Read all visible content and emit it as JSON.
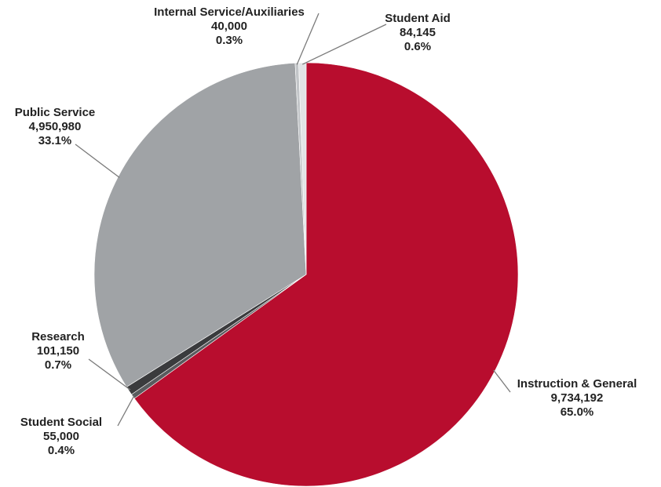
{
  "chart_data": {
    "type": "pie",
    "title": "",
    "slices": [
      {
        "name": "Instruction & General",
        "value": 9734192,
        "value_label": "9,734,192",
        "percent_label": "65.0%",
        "color": "#b80d2e"
      },
      {
        "name": "Student Social",
        "value": 55000,
        "value_label": "55,000",
        "percent_label": "0.4%",
        "color": "#595b5e"
      },
      {
        "name": "Research",
        "value": 101150,
        "value_label": "101,150",
        "percent_label": "0.7%",
        "color": "#3a3b3d"
      },
      {
        "name": "Public Service",
        "value": 4950980,
        "value_label": "4,950,980",
        "percent_label": "33.1%",
        "color": "#a0a3a6"
      },
      {
        "name": "Internal Service/Auxiliaries",
        "value": 40000,
        "value_label": "40,000",
        "percent_label": "0.3%",
        "color": "#c2c5c8"
      },
      {
        "name": "Student Aid",
        "value": 84145,
        "value_label": "84,145",
        "percent_label": "0.6%",
        "color": "#e2e4e6"
      }
    ],
    "start_angle_deg": 0,
    "direction": "clockwise",
    "legend": "none",
    "labels": "outside with leader lines"
  }
}
